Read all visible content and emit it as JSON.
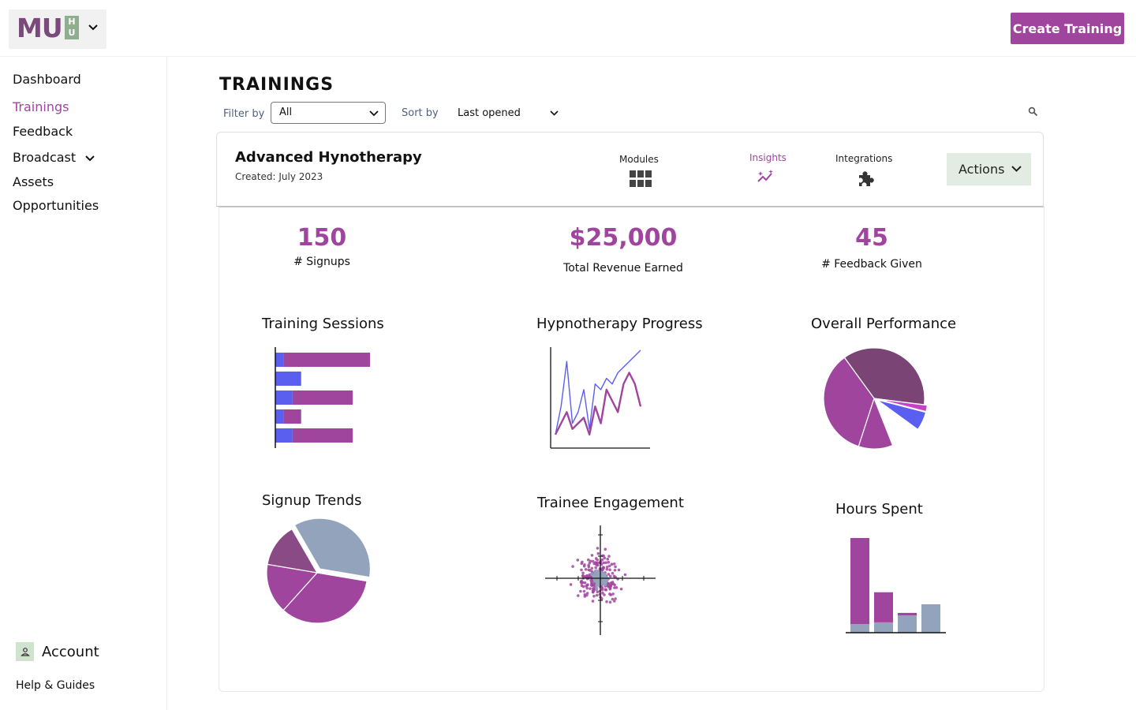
{
  "header": {
    "logo": {
      "main": "MU",
      "stack": "H\nU"
    },
    "create_button": "Create Training"
  },
  "sidebar": {
    "items": [
      {
        "label": "Dashboard",
        "active": false
      },
      {
        "label": "Trainings",
        "active": true
      },
      {
        "label": "Feedback",
        "active": false
      },
      {
        "label": "Broadcast",
        "active": false,
        "has_dropdown": true
      },
      {
        "label": "Assets",
        "active": false
      },
      {
        "label": "Opportunities",
        "active": false
      }
    ],
    "account_label": "Account",
    "help_label": "Help & Guides"
  },
  "main": {
    "title": "TRAININGS",
    "filter": {
      "label": "Filter by",
      "value": "All"
    },
    "sort": {
      "label": "Sort by",
      "value": "Last opened"
    }
  },
  "training": {
    "name": "Advanced Hynotherapy",
    "created": "Created: July 2023",
    "tabs": [
      {
        "label": "Modules",
        "icon": "grid-icon",
        "active": false
      },
      {
        "label": "Insights",
        "icon": "sparkle-chart-icon",
        "active": true
      },
      {
        "label": "Integrations",
        "icon": "puzzle-icon",
        "active": false
      }
    ],
    "actions_label": "Actions"
  },
  "stats": [
    {
      "value": "150",
      "label": "# Signups"
    },
    {
      "value": "$25,000",
      "label": "Total Revenue Earned"
    },
    {
      "value": "45",
      "label": "# Feedback Given"
    }
  ],
  "colors": {
    "accent": "#a0459e",
    "blue": "#5b5ff0",
    "slate": "#93a3bb",
    "plum": "#7a4475",
    "magenta": "#c640c8",
    "green_tint": "#e3ece3"
  },
  "chart_data": [
    {
      "type": "bar",
      "title": "Training Sessions",
      "orientation": "horizontal",
      "stacked": true,
      "categories": [
        "1",
        "2",
        "3",
        "4",
        "5"
      ],
      "series": [
        {
          "values": [
            1,
            3,
            2,
            1,
            2
          ]
        },
        {
          "values": [
            10,
            0,
            7,
            2,
            7
          ]
        }
      ]
    },
    {
      "type": "line",
      "title": "Hypnotherapy Progress",
      "x": [
        0,
        1,
        2,
        3,
        4,
        5,
        6,
        7,
        8,
        9,
        10,
        11,
        12,
        13,
        14,
        15
      ],
      "series": [
        {
          "values": [
            1,
            6,
            14,
            3,
            5,
            9,
            2,
            10,
            9,
            11,
            10,
            12,
            13,
            14,
            15,
            16
          ]
        },
        {
          "values": [
            1,
            3,
            5,
            2,
            3,
            4,
            1,
            6,
            3,
            9,
            7,
            5,
            10,
            12,
            10,
            6
          ]
        }
      ]
    },
    {
      "type": "pie",
      "title": "Overall Performance",
      "values": [
        37,
        2,
        6,
        9,
        11,
        35
      ],
      "series_colors": [
        "#7a4475",
        "#c640c8",
        "#5b5ff0",
        "#ffffff",
        "#a0459e",
        "#a0459e"
      ],
      "exploded": [
        false,
        true,
        true,
        false,
        false,
        false
      ]
    },
    {
      "type": "pie",
      "title": "Signup Trends",
      "values": [
        36,
        34,
        16,
        14
      ],
      "series_colors": [
        "#93a3bb",
        "#a0459e",
        "#a0459e",
        "#8a4a86"
      ],
      "exploded": [
        true,
        false,
        false,
        false
      ]
    },
    {
      "type": "scatter",
      "title": "Trainee Engagement",
      "series": [
        {
          "name": "",
          "spread": "wide"
        },
        {
          "name": "",
          "spread": "tight"
        }
      ]
    },
    {
      "type": "bar",
      "title": "Hours Spent",
      "stacked": true,
      "categories": [
        "1",
        "2",
        "3",
        "4"
      ],
      "series": [
        {
          "values": [
            10,
            12,
            20,
            33
          ]
        },
        {
          "values": [
            100,
            35,
            3,
            0
          ]
        }
      ]
    }
  ]
}
